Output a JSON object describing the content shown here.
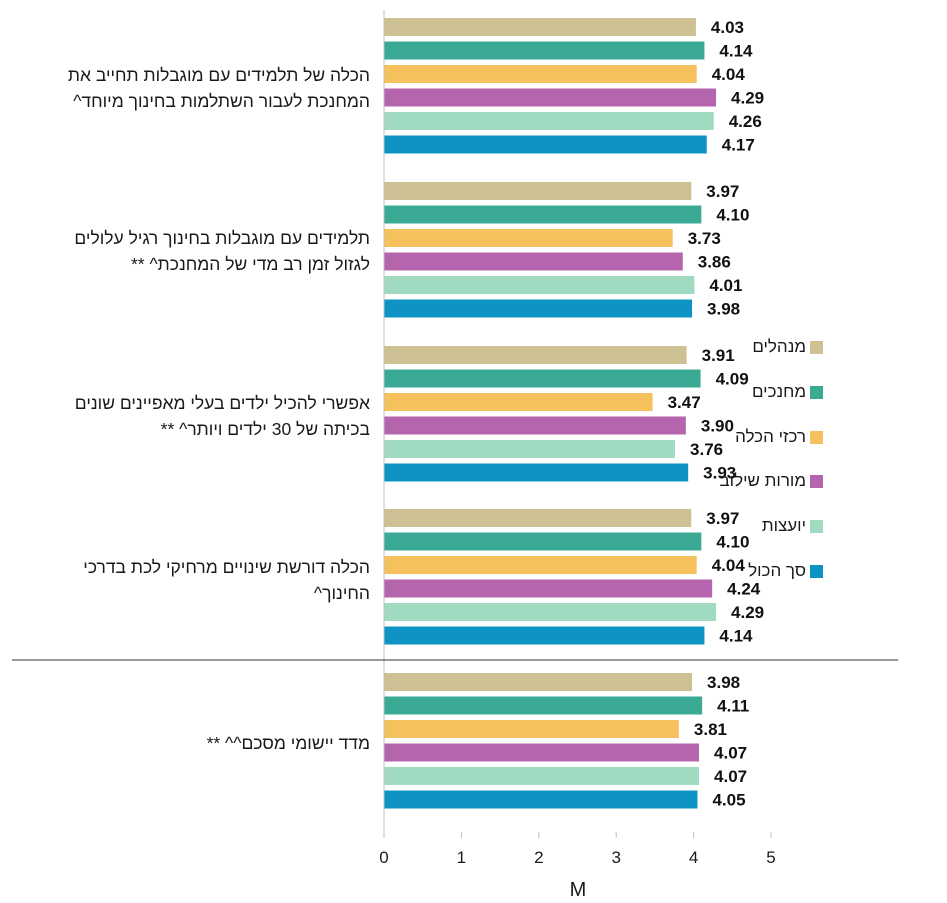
{
  "chart_data": {
    "type": "bar",
    "orientation": "horizontal",
    "xlabel": "M",
    "xlim": [
      0,
      5
    ],
    "xticks": [
      "0",
      "1",
      "2",
      "3",
      "4",
      "5"
    ],
    "grid": false,
    "legend_position": "right",
    "categories": [
      [
        "הכלה של תלמידים עם מוגבלות תחייב את",
        "המחנכת לעבור השתלמות בחינוך מיוחד^"
      ],
      [
        "תלמידים עם מוגבלות בחינוך רגיל עלולים",
        "לגזול זמן רב מדי של המחנכת^ **"
      ],
      [
        "אפשרי להכיל ילדים בעלי מאפיינים שונים",
        "בכיתה של 30 ילדים ויותר^ **"
      ],
      [
        "הכלה דורשת שינויים מרחיקי לכת בדרכי",
        "החינוך^"
      ],
      [
        "מדד יישומי מסכם^^ **"
      ]
    ],
    "series": [
      {
        "name": "מנהלים",
        "color": "#cdc093",
        "values": [
          4.03,
          3.97,
          3.91,
          3.97,
          3.98
        ]
      },
      {
        "name": "מחנכים",
        "color": "#3aaa94",
        "values": [
          4.14,
          4.1,
          4.09,
          4.1,
          4.11
        ]
      },
      {
        "name": "רכזי הכלה",
        "color": "#f4c15c",
        "values": [
          4.04,
          3.73,
          3.47,
          4.04,
          3.81
        ]
      },
      {
        "name": "מורות שילוב",
        "color": "#b565ad",
        "values": [
          4.29,
          3.86,
          3.9,
          4.24,
          4.07
        ]
      },
      {
        "name": "יועצות",
        "color": "#a0dbc1",
        "values": [
          4.26,
          4.01,
          3.76,
          4.29,
          4.07
        ]
      },
      {
        "name": "סך הכול",
        "color": "#0e94c4",
        "values": [
          4.17,
          3.98,
          3.93,
          4.14,
          4.05
        ]
      }
    ]
  }
}
